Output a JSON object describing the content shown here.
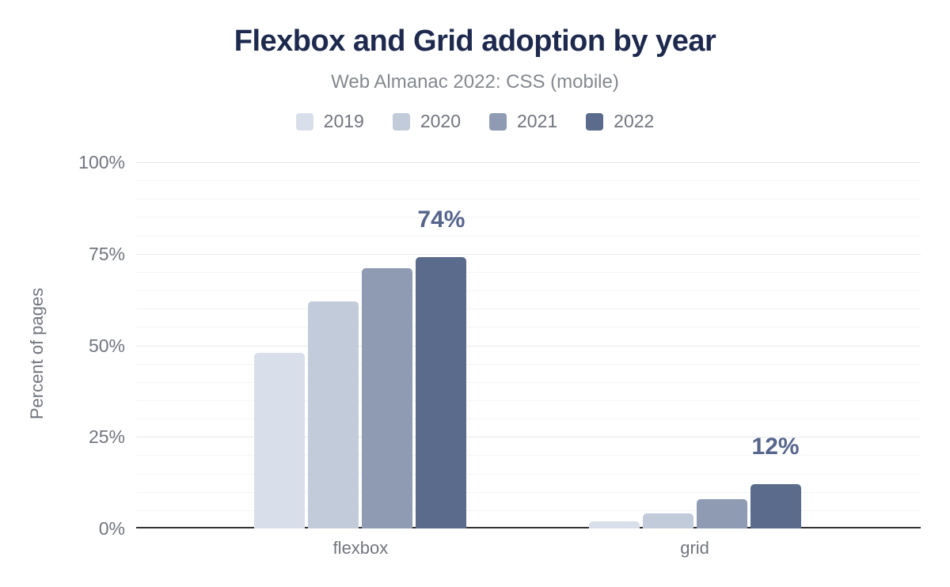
{
  "title": "Flexbox and Grid adoption by year",
  "subtitle": "Web Almanac 2022: CSS (mobile)",
  "colors": {
    "title_text": "#1d2a4e",
    "muted_text": "#71757e",
    "subtitle_text": "#84888e",
    "annotation_text": "#55658c",
    "axis_line": "#333333",
    "gridline_minor": "#f5f5f6",
    "gridline_major": "#e9e9eb",
    "background": "#ffffff"
  },
  "chart_data": {
    "type": "bar",
    "title": "Flexbox and Grid adoption by year",
    "subtitle": "Web Almanac 2022: CSS (mobile)",
    "ylabel": "Percent of pages",
    "xlabel": "",
    "ylim": [
      0,
      100
    ],
    "yticks": [
      "0%",
      "25%",
      "50%",
      "75%",
      "100%"
    ],
    "grid": "horizontal; minor gridline every 5%, major gridline every 25%",
    "legend_position": "top-center",
    "categories": [
      "flexbox",
      "grid"
    ],
    "series": [
      {
        "name": "2019",
        "color": "#d9dfea",
        "values": [
          48,
          2
        ]
      },
      {
        "name": "2020",
        "color": "#c2cbd9",
        "values": [
          62,
          4
        ]
      },
      {
        "name": "2021",
        "color": "#8e9bb2",
        "values": [
          71,
          8
        ]
      },
      {
        "name": "2022",
        "color": "#5a6b8c",
        "values": [
          74,
          12
        ]
      }
    ],
    "annotations": [
      {
        "category": "flexbox",
        "series": "2022",
        "text": "74%"
      },
      {
        "category": "grid",
        "series": "2022",
        "text": "12%"
      }
    ]
  }
}
